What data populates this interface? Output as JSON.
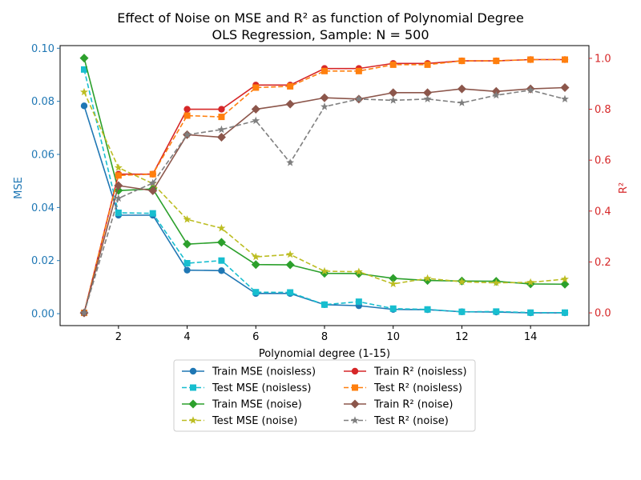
{
  "chart_data": {
    "type": "line",
    "title": "Effect of Noise on MSE and R² as function of Polynomial Degree",
    "subtitle": "OLS Regression, Sample: N = 500",
    "xlabel": "Polynomial degree (1-15)",
    "ylabel_left": "MSE",
    "ylabel_right": "R²",
    "xlim": [
      0.3,
      15.7
    ],
    "ylim_left": [
      -0.0045,
      0.101
    ],
    "ylim_right": [
      -0.05,
      1.05
    ],
    "xticks": [
      2,
      4,
      6,
      8,
      10,
      12,
      14
    ],
    "yticks_left": [
      0.0,
      0.02,
      0.04,
      0.06,
      0.08,
      0.1
    ],
    "yticks_left_labels": [
      "0.00",
      "0.02",
      "0.04",
      "0.06",
      "0.08",
      "0.10"
    ],
    "yticks_right": [
      0.0,
      0.2,
      0.4,
      0.6,
      0.8,
      1.0
    ],
    "yticks_right_labels": [
      "0.0",
      "0.2",
      "0.4",
      "0.6",
      "0.8",
      "1.0"
    ],
    "grid": false,
    "legend_position": "bottom-center",
    "axis_colors": {
      "left": "#1f77b4",
      "right": "#d62728"
    },
    "x": [
      1,
      2,
      3,
      4,
      5,
      6,
      7,
      8,
      9,
      10,
      11,
      12,
      13,
      14,
      15
    ],
    "series": [
      {
        "name": "Train MSE (noisless)",
        "axis": "left",
        "color": "#1f77b4",
        "marker": "circle",
        "dash": false,
        "values": [
          0.0783,
          0.0371,
          0.0371,
          0.0164,
          0.0162,
          0.0076,
          0.0076,
          0.0034,
          0.003,
          0.0016,
          0.0015,
          0.0007,
          0.0006,
          0.0003,
          0.0003
        ]
      },
      {
        "name": "Test MSE (noisless)",
        "axis": "left",
        "color": "#17becf",
        "marker": "square",
        "dash": true,
        "values": [
          0.092,
          0.038,
          0.0378,
          0.019,
          0.02,
          0.0081,
          0.008,
          0.0034,
          0.0045,
          0.0019,
          0.0016,
          0.0007,
          0.0008,
          0.0004,
          0.0004
        ]
      },
      {
        "name": "Train MSE (noise)",
        "axis": "left",
        "color": "#2ca02c",
        "marker": "diamond",
        "dash": false,
        "values": [
          0.0963,
          0.0464,
          0.047,
          0.0262,
          0.0269,
          0.0185,
          0.0184,
          0.0152,
          0.0151,
          0.0133,
          0.0125,
          0.0123,
          0.0122,
          0.0112,
          0.0111
        ]
      },
      {
        "name": "Test MSE (noise)",
        "axis": "left",
        "color": "#bcbd22",
        "marker": "star",
        "dash": true,
        "values": [
          0.0835,
          0.055,
          0.049,
          0.0355,
          0.0322,
          0.0214,
          0.0223,
          0.016,
          0.0158,
          0.0112,
          0.0133,
          0.012,
          0.0116,
          0.0118,
          0.013
        ]
      },
      {
        "name": "Train R² (noisless)",
        "axis": "right",
        "color": "#d62728",
        "marker": "circle",
        "dash": false,
        "values": [
          0.0,
          0.545,
          0.545,
          0.8,
          0.8,
          0.895,
          0.895,
          0.96,
          0.96,
          0.98,
          0.98,
          0.99,
          0.99,
          0.995,
          0.995
        ]
      },
      {
        "name": "Test R² (noisless)",
        "axis": "right",
        "color": "#ff7f0e",
        "marker": "square",
        "dash": true,
        "values": [
          0.0,
          0.54,
          0.545,
          0.775,
          0.77,
          0.885,
          0.89,
          0.95,
          0.95,
          0.975,
          0.975,
          0.99,
          0.99,
          0.995,
          0.995
        ]
      },
      {
        "name": "Train R² (noise)",
        "axis": "right",
        "color": "#8c564b",
        "marker": "diamond",
        "dash": false,
        "values": [
          0.0,
          0.5,
          0.48,
          0.7,
          0.69,
          0.8,
          0.82,
          0.845,
          0.84,
          0.865,
          0.865,
          0.88,
          0.87,
          0.88,
          0.885
        ]
      },
      {
        "name": "Test R² (noise)",
        "axis": "right",
        "color": "#7f7f7f",
        "marker": "star",
        "dash": true,
        "values": [
          0.0,
          0.45,
          0.51,
          0.7,
          0.72,
          0.755,
          0.59,
          0.81,
          0.84,
          0.835,
          0.84,
          0.825,
          0.855,
          0.875,
          0.84
        ]
      }
    ]
  }
}
